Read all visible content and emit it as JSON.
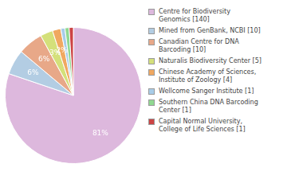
{
  "chart_data": {
    "type": "pie",
    "categories": [
      "Centre for Biodiversity\nGenomics [140]",
      "Mined from GenBank, NCBI [10]",
      "Canadian Centre for DNA\nBarcoding [10]",
      "Naturalis Biodiversity Center [5]",
      "Chinese Academy of Sciences,\nInstitute of Zoology [4]",
      "Wellcome Sanger Institute [1]",
      "Southern China DNA Barcoding\nCenter [1]",
      "Capital Normal University,\nCollege of Life Sciences [1]"
    ],
    "values": [
      81,
      6,
      6,
      3,
      2,
      1,
      1,
      1
    ],
    "value_labels": [
      "81%",
      "6%",
      "6%",
      "3%",
      "2%",
      null,
      null,
      null
    ],
    "colors": [
      "#ddb8dd",
      "#b3cde3",
      "#e8a888",
      "#d4e07a",
      "#f0a860",
      "#a8cce8",
      "#90d890",
      "#cc4444"
    ],
    "data_labels": true,
    "legend": "right"
  }
}
